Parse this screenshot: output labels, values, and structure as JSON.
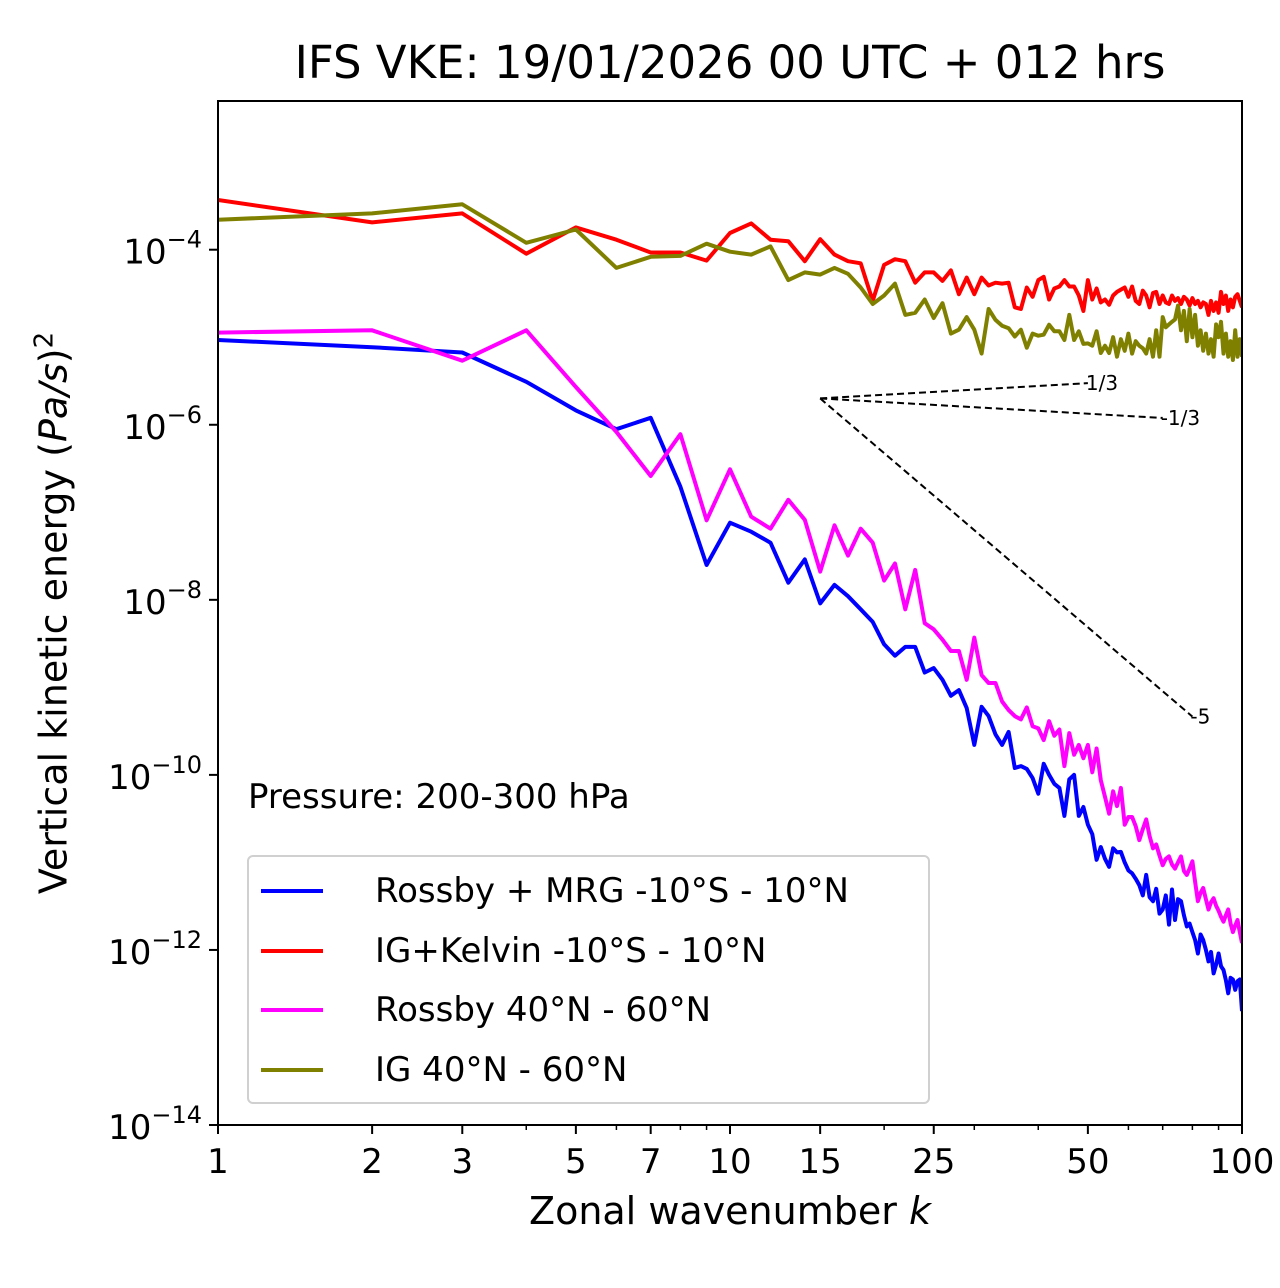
{
  "chart_data": {
    "type": "line",
    "title": "IFS VKE: 19/01/2026 00 UTC + 012 hrs",
    "xlabel": "Zonal wavenumber k",
    "xlabel_main": "Zonal wavenumber ",
    "xlabel_italic": "k",
    "ylabel": "Vertical kinetic energy (Pa/s)^2",
    "ylabel_main": "Vertical kinetic energy (",
    "ylabel_italic": "Pa/s",
    "ylabel_tail": ")",
    "ylabel_sup": "2",
    "xscale": "log",
    "yscale": "log",
    "xlim": [
      1,
      100
    ],
    "ylim": [
      1e-14,
      0.005
    ],
    "grid": false,
    "legend_position": "lower-left",
    "x_major_ticks": [
      1,
      2,
      3,
      5,
      7,
      10,
      15,
      25,
      50,
      100
    ],
    "x_tick_labels": [
      "1",
      "2",
      "3",
      "5",
      "7",
      "10",
      "15",
      "25",
      "50",
      "100"
    ],
    "x_minor_ticks": [
      4,
      6,
      8,
      9,
      20,
      30,
      40,
      60,
      70,
      80,
      90
    ],
    "y_major_ticks": [
      1e-14,
      1e-12,
      1e-10,
      1e-08,
      1e-06,
      0.0001
    ],
    "y_tick_labels": [
      {
        "base": "10",
        "exp": "−14"
      },
      {
        "base": "10",
        "exp": "−12"
      },
      {
        "base": "10",
        "exp": "−10"
      },
      {
        "base": "10",
        "exp": "−8"
      },
      {
        "base": "10",
        "exp": "−6"
      },
      {
        "base": "10",
        "exp": "−4"
      }
    ],
    "annotation": "Pressure: 200-300 hPa",
    "reference_slopes": [
      {
        "label": "1/3",
        "slope": 0.3333,
        "k_start": 15,
        "k_end": 50,
        "y_start": 2e-06
      },
      {
        "label": "-1/3",
        "slope": -0.3333,
        "k_start": 15,
        "k_end": 70,
        "y_start": 2e-06
      },
      {
        "label": "-5",
        "slope": -5,
        "k_start": 15,
        "k_end": 80,
        "y_start": 2e-06
      }
    ],
    "x": [
      1,
      2,
      3,
      4,
      5,
      6,
      7,
      8,
      9,
      10,
      11,
      12,
      13,
      14,
      15,
      16,
      17,
      18,
      19,
      20,
      21,
      22,
      23,
      24,
      25,
      26,
      27,
      28,
      29,
      30,
      31,
      32,
      33,
      34,
      35,
      36,
      37,
      38,
      39,
      40,
      41,
      42,
      43,
      44,
      45,
      46,
      47,
      48,
      49,
      50,
      51,
      52,
      53,
      54,
      55,
      56,
      57,
      58,
      59,
      60,
      61,
      62,
      63,
      64,
      65,
      66,
      67,
      68,
      69,
      70,
      71,
      72,
      73,
      74,
      75,
      76,
      77,
      78,
      79,
      80,
      81,
      82,
      83,
      84,
      85,
      86,
      87,
      88,
      89,
      90,
      91,
      92,
      93,
      94,
      95,
      96,
      97,
      98,
      99,
      100
    ],
    "series": [
      {
        "name": "Rossby + MRG -10°S - 10°N",
        "color": "#0000ff",
        "values": [
          9.3e-06,
          7.7e-06,
          6.7e-06,
          3.1e-06,
          1.46e-06,
          8.9e-07,
          1.2e-06,
          1.96e-07,
          2.5e-08,
          7.6e-08,
          6e-08,
          4.5e-08,
          1.57e-08,
          2.9e-08,
          9.1e-09,
          1.48e-08,
          1.1e-08,
          7.8e-09,
          5.6e-09,
          3.1e-09,
          2.3e-09,
          2.9e-09,
          2.9e-09,
          1.48e-09,
          1.66e-09,
          1.22e-09,
          8e-10,
          9.3e-10,
          5.8e-10,
          2.2e-10,
          6e-10,
          4.7e-10,
          2.9e-10,
          2.2e-10,
          3.1e-10,
          1.2e-10,
          1.26e-10,
          1.17e-10,
          9.2e-11,
          6.1e-11,
          1.34e-10,
          1e-10,
          7.9e-11,
          7.1e-11,
          3.4e-11,
          8.9e-11,
          1e-10,
          3.4e-11,
          4.3e-11,
          2.7e-11,
          2.1e-11,
          1.07e-11,
          1.5e-11,
          1.1e-11,
          8.9e-12,
          1.45e-11,
          1.3e-11,
          1.32e-11,
          1e-11,
          8.1e-12,
          7.5e-12,
          6.5e-12,
          5.5e-12,
          4.2e-12,
          7.2e-12,
          4e-12,
          3.6e-12,
          5e-12,
          2.6e-12,
          2.9e-12,
          4.2e-12,
          1.95e-12,
          4.9e-12,
          2.2e-12,
          3.8e-12,
          3.6e-12,
          2.5e-12,
          1.86e-12,
          2e-12,
          1.6e-12,
          1.3e-12,
          9.1e-13,
          1.5e-12,
          1.3e-12,
          1e-12,
          7.4e-13,
          9.5e-13,
          5.4e-13,
          6.8e-13,
          9.1e-13,
          6.5e-13,
          5.9e-13,
          4.5e-13,
          3.2e-13,
          4.8e-13,
          4.6e-13,
          3.5e-13,
          4.4e-13,
          4.6e-13,
          2e-13
        ]
      },
      {
        "name": "IG+Kelvin -10°S - 10°N",
        "color": "#ff0000",
        "values": [
          0.00037,
          0.000205,
          0.00026,
          9e-05,
          0.00018,
          0.00013,
          9.3e-05,
          9.3e-05,
          7.5e-05,
          0.000155,
          0.0002,
          0.00013,
          0.000125,
          7.4e-05,
          0.000132,
          8.8e-05,
          7.4e-05,
          7e-05,
          2.6e-05,
          6.7e-05,
          7.8e-05,
          7.4e-05,
          4.2e-05,
          5.5e-05,
          5.5e-05,
          4.4e-05,
          5.8e-05,
          3.1e-05,
          4.8e-05,
          3.1e-05,
          4.8e-05,
          3.9e-05,
          4.2e-05,
          4.1e-05,
          4.2e-05,
          2.2e-05,
          2.1e-05,
          3.7e-05,
          2.9e-05,
          4.5e-05,
          4.9e-05,
          2.7e-05,
          3.6e-05,
          3.8e-05,
          4.5e-05,
          3.8e-05,
          3.8e-05,
          3e-05,
          2e-05,
          4.5e-05,
          2.7e-05,
          3.6e-05,
          2.5e-05,
          2.7e-05,
          2.35e-05,
          3e-05,
          3.3e-05,
          3.5e-05,
          3.7e-05,
          2.9e-05,
          3.8e-05,
          2.6e-05,
          2.4e-05,
          3.4e-05,
          3e-05,
          2.2e-05,
          3.2e-05,
          3.3e-05,
          2.4e-05,
          3e-05,
          2.5e-05,
          2.4e-05,
          3e-05,
          2.6e-05,
          2.8e-05,
          2.4e-05,
          2.9e-05,
          2.7e-05,
          2.3e-05,
          2.8e-05,
          2.4e-05,
          2.6e-05,
          2.2e-05,
          2.5e-05,
          2.4e-05,
          1.8e-05,
          2.6e-05,
          2e-05,
          2.5e-05,
          1.9e-05,
          3.3e-05,
          2.4e-05,
          3e-05,
          2e-05,
          2.7e-05,
          2.2e-05,
          2.9e-05,
          3.1e-05,
          2.6e-05,
          2.2e-05
        ]
      },
      {
        "name": "Rossby 40°N - 60°N",
        "color": "#ff00ff",
        "values": [
          1.13e-05,
          1.2e-05,
          5.4e-06,
          1.2e-05,
          2.7e-06,
          8.3e-07,
          2.6e-07,
          7.8e-07,
          8.1e-08,
          3.1e-07,
          8.9e-08,
          6.5e-08,
          1.39e-07,
          8.2e-08,
          2.1e-08,
          7.1e-08,
          3.2e-08,
          6.5e-08,
          4.5e-08,
          1.66e-08,
          2.6e-08,
          7.8e-09,
          2.2e-08,
          5.4e-09,
          4.6e-09,
          3.5e-09,
          2.6e-09,
          2.6e-09,
          1.22e-09,
          3.7e-09,
          1.38e-09,
          1.12e-09,
          1.12e-09,
          6.9e-10,
          5.5e-10,
          4.7e-10,
          4.3e-10,
          5.9e-10,
          3.6e-10,
          3.4e-10,
          2.5e-10,
          4.1e-10,
          2.8e-10,
          3.3e-10,
          1.26e-10,
          3e-10,
          1.7e-10,
          2.2e-10,
          1.55e-10,
          2.2e-10,
          1.07e-10,
          2e-10,
          8.7e-11,
          5.6e-11,
          3.6e-11,
          6.5e-11,
          4.4e-11,
          7.1e-11,
          2.7e-11,
          3.3e-11,
          3.3e-11,
          2.6e-11,
          1.8e-11,
          2.4e-11,
          3.1e-11,
          2e-11,
          1.45e-11,
          1.6e-11,
          1.2e-11,
          9.3e-12,
          1.1e-11,
          1.17e-11,
          9.5e-12,
          8.5e-12,
          1e-11,
          1.17e-11,
          8e-12,
          7.2e-12,
          8.5e-12,
          1.03e-11,
          6e-12,
          3.6e-12,
          4.5e-12,
          5.1e-12,
          3.8e-12,
          2.9e-12,
          3.5e-12,
          3.9e-12,
          3.2e-12,
          2.8e-12,
          2.4e-12,
          2.1e-12,
          2.5e-12,
          2.9e-12,
          2e-12,
          1.6e-12,
          1.9e-12,
          2.2e-12,
          1.6e-12,
          1.2e-12
        ]
      },
      {
        "name": "IG 40°N - 60°N",
        "color": "#808000",
        "values": [
          0.00022,
          0.00026,
          0.00033,
          0.00012,
          0.00017,
          6.2e-05,
          8.3e-05,
          8.5e-05,
          0.000117,
          9.5e-05,
          8.8e-05,
          0.000109,
          4.5e-05,
          5.5e-05,
          5.2e-05,
          6.2e-05,
          5.3e-05,
          3.7e-05,
          2.4e-05,
          3e-05,
          4.1e-05,
          1.8e-05,
          1.9e-05,
          2.7e-05,
          1.66e-05,
          2.45e-05,
          1.1e-05,
          1.22e-05,
          1.7e-05,
          1.22e-05,
          6.5e-06,
          2.1e-05,
          1.58e-05,
          1.35e-05,
          1.27e-05,
          1.02e-05,
          1.22e-05,
          7.6e-06,
          1.1e-05,
          1.04e-05,
          1.07e-05,
          1.39e-05,
          1.17e-05,
          1.17e-05,
          9.3e-06,
          1.8e-05,
          9.3e-06,
          1.17e-05,
          8.4e-06,
          8.5e-06,
          8e-06,
          1.17e-05,
          6.6e-06,
          8e-06,
          6.6e-06,
          1e-05,
          6e-06,
          9.5e-06,
          7e-06,
          1.1e-05,
          6.5e-06,
          9e-06,
          8e-06,
          7.5e-06,
          6.5e-06,
          9.5e-06,
          6e-06,
          1.2e-05,
          6e-06,
          1.7e-05,
          1.3e-05,
          1.4e-05,
          1.5e-05,
          1.6e-05,
          2.3e-05,
          1.2e-05,
          2e-05,
          9e-06,
          2.1e-05,
          1e-05,
          1.8e-05,
          8e-06,
          1.2e-05,
          7e-06,
          1.1e-05,
          6.5e-06,
          9.5e-06,
          6e-06,
          1.4e-05,
          1e-05,
          1.5e-05,
          6.5e-06,
          1.1e-05,
          6e-06,
          9e-06,
          5.5e-06,
          1.2e-05,
          6e-06,
          9.5e-06,
          6e-06
        ]
      }
    ]
  }
}
